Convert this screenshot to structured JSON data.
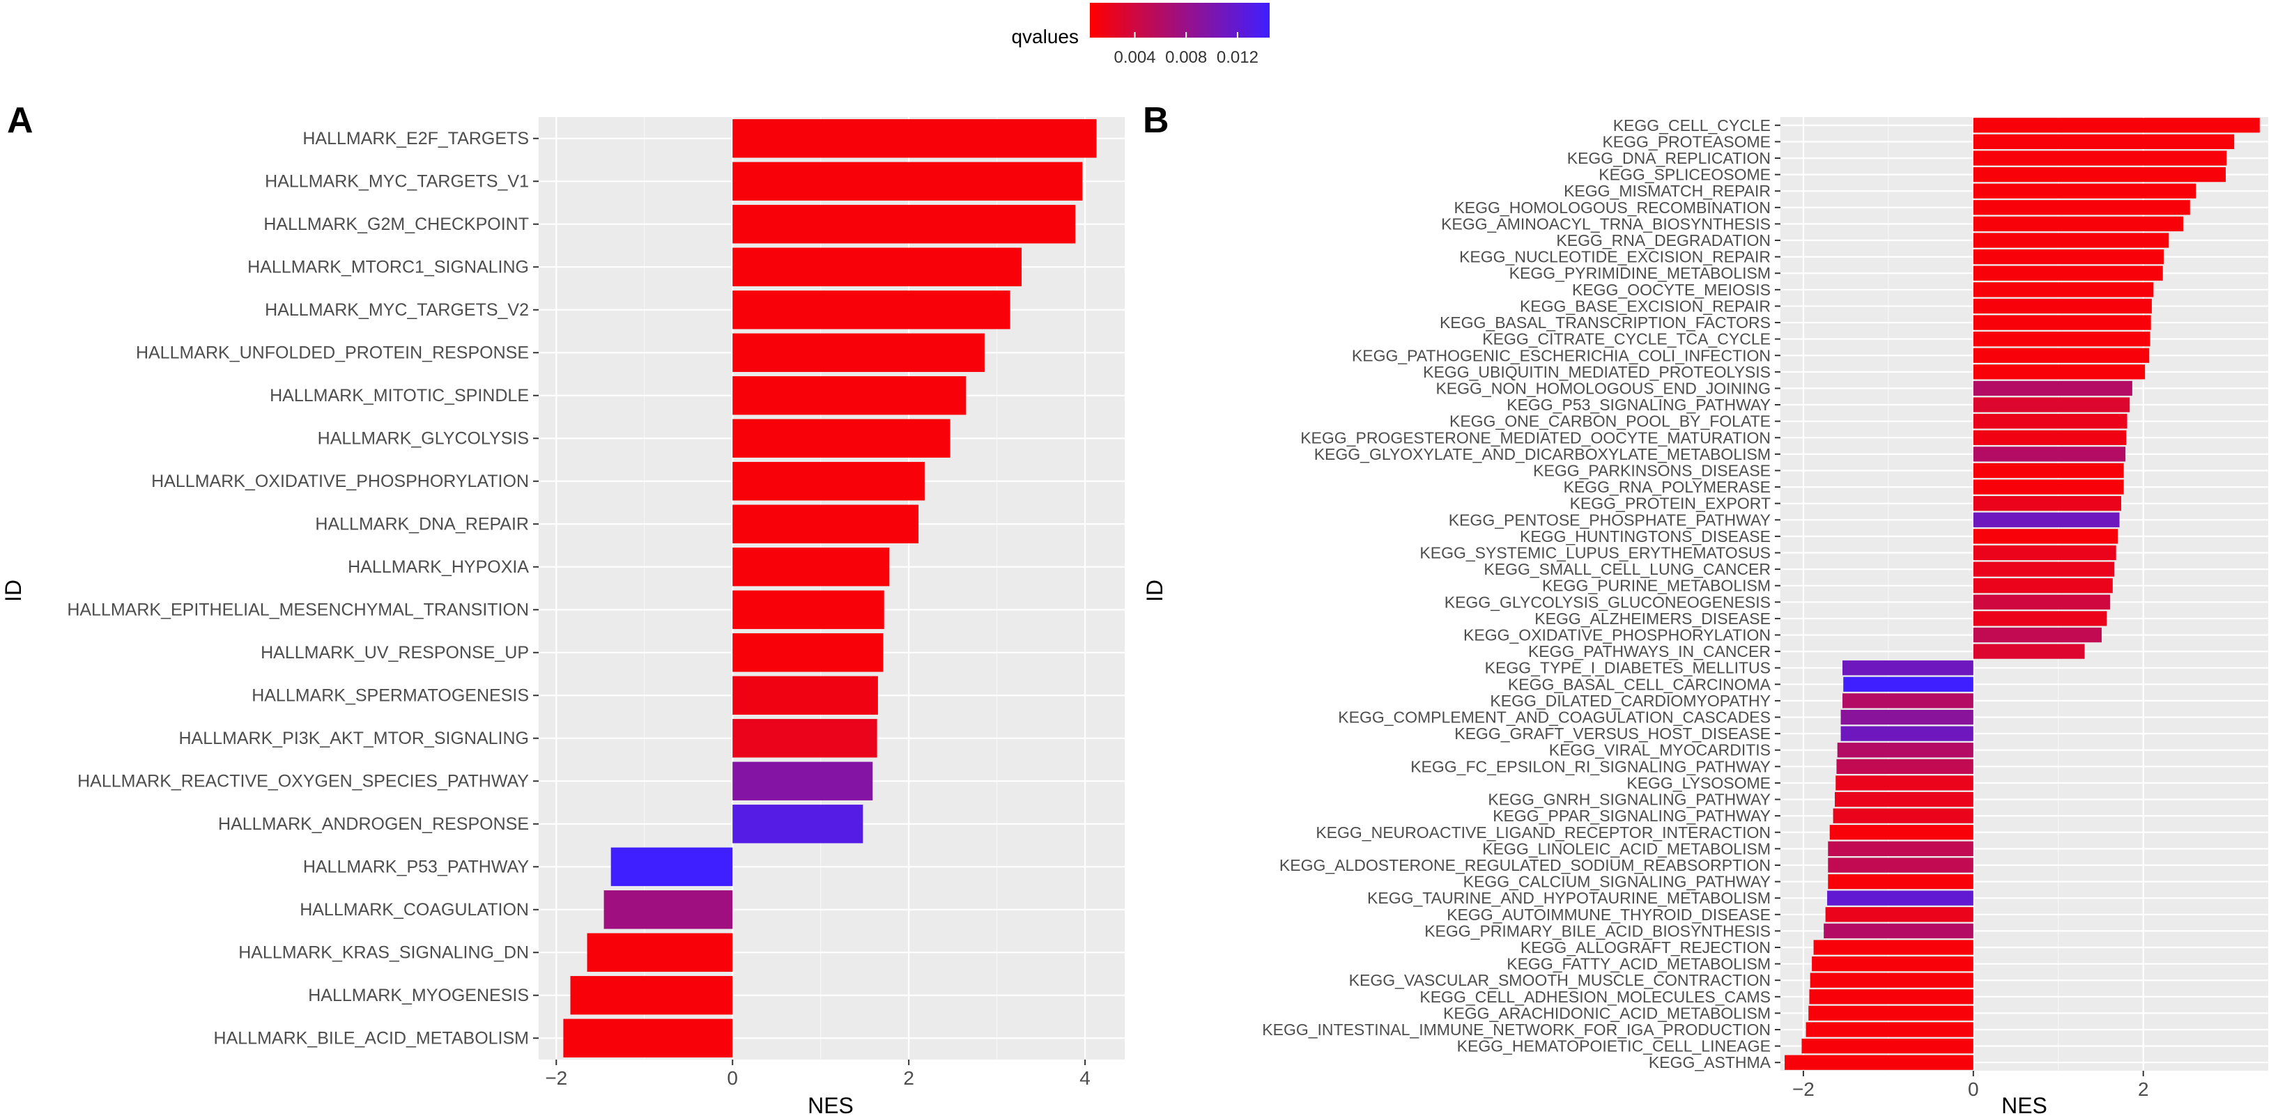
{
  "legend": {
    "title": "qvalues",
    "tick_labels": [
      "0.004",
      "0.008",
      "0.012"
    ],
    "color_low": "#ff0000",
    "color_high": "#3f1fff",
    "range": [
      0.0005,
      0.0145
    ]
  },
  "chart_data": [
    {
      "type": "bar",
      "orientation": "horizontal",
      "panel_label": "A",
      "xlabel": "NES",
      "ylabel": "ID",
      "xlim": [
        -2.2,
        4.45
      ],
      "xticks": [
        -2,
        0,
        2,
        4
      ],
      "xtick_labels": [
        "−2",
        "0",
        "2",
        "4"
      ],
      "grid": true,
      "categories": [
        "HALLMARK_E2F_TARGETS",
        "HALLMARK_MYC_TARGETS_V1",
        "HALLMARK_G2M_CHECKPOINT",
        "HALLMARK_MTORC1_SIGNALING",
        "HALLMARK_MYC_TARGETS_V2",
        "HALLMARK_UNFOLDED_PROTEIN_RESPONSE",
        "HALLMARK_MITOTIC_SPINDLE",
        "HALLMARK_GLYCOLYSIS",
        "HALLMARK_OXIDATIVE_PHOSPHORYLATION",
        "HALLMARK_DNA_REPAIR",
        "HALLMARK_HYPOXIA",
        "HALLMARK_EPITHELIAL_MESENCHYMAL_TRANSITION",
        "HALLMARK_UV_RESPONSE_UP",
        "HALLMARK_SPERMATOGENESIS",
        "HALLMARK_PI3K_AKT_MTOR_SIGNALING",
        "HALLMARK_REACTIVE_OXYGEN_SPECIES_PATHWAY",
        "HALLMARK_ANDROGEN_RESPONSE",
        "HALLMARK_P53_PATHWAY",
        "HALLMARK_COAGULATION",
        "HALLMARK_KRAS_SIGNALING_DN",
        "HALLMARK_MYOGENESIS",
        "HALLMARK_BILE_ACID_METABOLISM"
      ],
      "values": [
        4.13,
        3.97,
        3.89,
        3.28,
        3.15,
        2.86,
        2.65,
        2.47,
        2.18,
        2.11,
        1.78,
        1.72,
        1.71,
        1.65,
        1.64,
        1.59,
        1.48,
        -1.38,
        -1.46,
        -1.65,
        -1.84,
        -1.92
      ],
      "qvalues": [
        0.001,
        0.001,
        0.001,
        0.001,
        0.001,
        0.001,
        0.001,
        0.001,
        0.001,
        0.001,
        0.001,
        0.001,
        0.001,
        0.0015,
        0.002,
        0.0095,
        0.013,
        0.0145,
        0.0075,
        0.001,
        0.001,
        0.001
      ]
    },
    {
      "type": "bar",
      "orientation": "horizontal",
      "panel_label": "B",
      "xlabel": "NES",
      "ylabel": "ID",
      "xlim": [
        -2.27,
        3.47
      ],
      "xticks": [
        -2,
        0,
        2
      ],
      "xtick_labels": [
        "−2",
        "0",
        "2"
      ],
      "grid": true,
      "categories": [
        "KEGG_CELL_CYCLE",
        "KEGG_PROTEASOME",
        "KEGG_DNA_REPLICATION",
        "KEGG_SPLICEOSOME",
        "KEGG_MISMATCH_REPAIR",
        "KEGG_HOMOLOGOUS_RECOMBINATION",
        "KEGG_AMINOACYL_TRNA_BIOSYNTHESIS",
        "KEGG_RNA_DEGRADATION",
        "KEGG_NUCLEOTIDE_EXCISION_REPAIR",
        "KEGG_PYRIMIDINE_METABOLISM",
        "KEGG_OOCYTE_MEIOSIS",
        "KEGG_BASE_EXCISION_REPAIR",
        "KEGG_BASAL_TRANSCRIPTION_FACTORS",
        "KEGG_CITRATE_CYCLE_TCA_CYCLE",
        "KEGG_PATHOGENIC_ESCHERICHIA_COLI_INFECTION",
        "KEGG_UBIQUITIN_MEDIATED_PROTEOLYSIS",
        "KEGG_NON_HOMOLOGOUS_END_JOINING",
        "KEGG_P53_SIGNALING_PATHWAY",
        "KEGG_ONE_CARBON_POOL_BY_FOLATE",
        "KEGG_PROGESTERONE_MEDIATED_OOCYTE_MATURATION",
        "KEGG_GLYOXYLATE_AND_DICARBOXYLATE_METABOLISM",
        "KEGG_PARKINSONS_DISEASE",
        "KEGG_RNA_POLYMERASE",
        "KEGG_PROTEIN_EXPORT",
        "KEGG_PENTOSE_PHOSPHATE_PATHWAY",
        "KEGG_HUNTINGTONS_DISEASE",
        "KEGG_SYSTEMIC_LUPUS_ERYTHEMATOSUS",
        "KEGG_SMALL_CELL_LUNG_CANCER",
        "KEGG_PURINE_METABOLISM",
        "KEGG_GLYCOLYSIS_GLUCONEOGENESIS",
        "KEGG_ALZHEIMERS_DISEASE",
        "KEGG_OXIDATIVE_PHOSPHORYLATION",
        "KEGG_PATHWAYS_IN_CANCER",
        "KEGG_TYPE_I_DIABETES_MELLITUS",
        "KEGG_BASAL_CELL_CARCINOMA",
        "KEGG_DILATED_CARDIOMYOPATHY",
        "KEGG_COMPLEMENT_AND_COAGULATION_CASCADES",
        "KEGG_GRAFT_VERSUS_HOST_DISEASE",
        "KEGG_VIRAL_MYOCARDITIS",
        "KEGG_FC_EPSILON_RI_SIGNALING_PATHWAY",
        "KEGG_LYSOSOME",
        "KEGG_GNRH_SIGNALING_PATHWAY",
        "KEGG_PPAR_SIGNALING_PATHWAY",
        "KEGG_NEUROACTIVE_LIGAND_RECEPTOR_INTERACTION",
        "KEGG_LINOLEIC_ACID_METABOLISM",
        "KEGG_ALDOSTERONE_REGULATED_SODIUM_REABSORPTION",
        "KEGG_CALCIUM_SIGNALING_PATHWAY",
        "KEGG_TAURINE_AND_HYPOTAURINE_METABOLISM",
        "KEGG_AUTOIMMUNE_THYROID_DISEASE",
        "KEGG_PRIMARY_BILE_ACID_BIOSYNTHESIS",
        "KEGG_ALLOGRAFT_REJECTION",
        "KEGG_FATTY_ACID_METABOLISM",
        "KEGG_VASCULAR_SMOOTH_MUSCLE_CONTRACTION",
        "KEGG_CELL_ADHESION_MOLECULES_CAMS",
        "KEGG_ARACHIDONIC_ACID_METABOLISM",
        "KEGG_INTESTINAL_IMMUNE_NETWORK_FOR_IGA_PRODUCTION",
        "KEGG_HEMATOPOIETIC_CELL_LINEAGE",
        "KEGG_ASTHMA"
      ],
      "values": [
        3.37,
        3.07,
        2.98,
        2.97,
        2.62,
        2.55,
        2.47,
        2.3,
        2.24,
        2.23,
        2.12,
        2.1,
        2.09,
        2.08,
        2.07,
        2.02,
        1.87,
        1.84,
        1.81,
        1.8,
        1.79,
        1.77,
        1.77,
        1.74,
        1.72,
        1.7,
        1.68,
        1.66,
        1.64,
        1.61,
        1.57,
        1.51,
        1.31,
        -1.54,
        -1.53,
        -1.54,
        -1.56,
        -1.56,
        -1.6,
        -1.61,
        -1.62,
        -1.63,
        -1.65,
        -1.69,
        -1.71,
        -1.71,
        -1.71,
        -1.72,
        -1.74,
        -1.76,
        -1.88,
        -1.9,
        -1.92,
        -1.93,
        -1.94,
        -1.97,
        -2.02,
        -2.22
      ],
      "qvalues": [
        0.001,
        0.001,
        0.001,
        0.001,
        0.001,
        0.001,
        0.001,
        0.001,
        0.001,
        0.001,
        0.001,
        0.001,
        0.001,
        0.001,
        0.001,
        0.001,
        0.006,
        0.003,
        0.002,
        0.0015,
        0.006,
        0.001,
        0.001,
        0.002,
        0.011,
        0.001,
        0.002,
        0.002,
        0.002,
        0.004,
        0.002,
        0.005,
        0.003,
        0.011,
        0.0145,
        0.006,
        0.009,
        0.011,
        0.006,
        0.005,
        0.002,
        0.002,
        0.002,
        0.001,
        0.005,
        0.005,
        0.001,
        0.012,
        0.002,
        0.006,
        0.001,
        0.001,
        0.001,
        0.001,
        0.001,
        0.001,
        0.001,
        0.001
      ]
    }
  ]
}
